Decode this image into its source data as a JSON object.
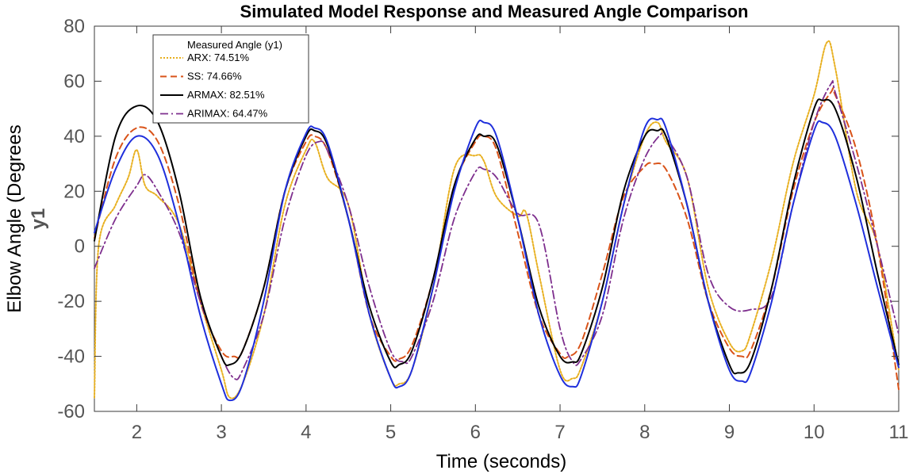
{
  "chart_data": {
    "type": "line",
    "title": "Simulated Model Response and Measured Angle Comparison",
    "xlabel": "Time (seconds)",
    "ylabel": "Elbow Angle (Degrees",
    "ylabel_secondary": "y1",
    "xlim": [
      1.5,
      11
    ],
    "ylim": [
      -60,
      80
    ],
    "xticks": [
      2,
      3,
      4,
      5,
      6,
      7,
      8,
      9,
      10,
      11
    ],
    "yticks": [
      -60,
      -40,
      -20,
      0,
      20,
      40,
      60,
      80
    ],
    "grid": false,
    "legend_position": "top-left",
    "legend_title": "Measured Angle (y1)",
    "series": [
      {
        "name": "Measured Angle (y1)",
        "color": "#1f2fdc",
        "style": "solid",
        "x": [
          1.5,
          1.75,
          2.0,
          2.25,
          2.5,
          2.75,
          3.0,
          3.1,
          3.25,
          3.5,
          3.75,
          4.0,
          4.1,
          4.25,
          4.5,
          4.75,
          5.0,
          5.1,
          5.25,
          5.5,
          5.75,
          6.0,
          6.1,
          6.25,
          6.5,
          6.75,
          7.0,
          7.15,
          7.25,
          7.5,
          7.75,
          8.0,
          8.15,
          8.25,
          8.5,
          8.75,
          9.0,
          9.15,
          9.25,
          9.5,
          9.75,
          10.0,
          10.1,
          10.25,
          10.5,
          10.75,
          11.0
        ],
        "y": [
          5,
          28,
          40,
          33,
          8,
          -25,
          -50,
          -56,
          -50,
          -20,
          20,
          41,
          43,
          38,
          10,
          -25,
          -48,
          -51,
          -45,
          -15,
          20,
          43,
          45,
          40,
          10,
          -25,
          -47,
          -51,
          -47,
          -20,
          15,
          43,
          46,
          43,
          15,
          -20,
          -45,
          -49,
          -46,
          -20,
          15,
          42,
          45,
          40,
          15,
          -15,
          -44
        ]
      },
      {
        "name": "ARX: 74.51%",
        "color": "#e8b020",
        "style": "dotted",
        "x": [
          1.5,
          1.55,
          1.75,
          1.9,
          2.0,
          2.1,
          2.25,
          2.5,
          2.75,
          3.0,
          3.1,
          3.25,
          3.5,
          3.75,
          4.0,
          4.1,
          4.25,
          4.5,
          4.75,
          5.0,
          5.1,
          5.25,
          5.5,
          5.75,
          6.0,
          6.1,
          6.25,
          6.5,
          6.6,
          6.75,
          7.0,
          7.15,
          7.25,
          7.5,
          7.75,
          8.0,
          8.15,
          8.25,
          8.5,
          8.75,
          9.0,
          9.15,
          9.25,
          9.5,
          9.75,
          10.0,
          10.15,
          10.25,
          10.5,
          10.75,
          11.0
        ],
        "y": [
          -55,
          0,
          15,
          25,
          35,
          22,
          18,
          8,
          -20,
          -45,
          -55,
          -50,
          -25,
          15,
          35,
          38,
          25,
          15,
          -25,
          -48,
          -50,
          -45,
          -15,
          28,
          33,
          31,
          18,
          11,
          12,
          -10,
          -45,
          -48,
          -44,
          -20,
          15,
          40,
          45,
          38,
          25,
          -15,
          -35,
          -38,
          -32,
          -5,
          30,
          55,
          74,
          65,
          20,
          0,
          -45
        ]
      },
      {
        "name": "SS: 74.66%",
        "color": "#d95319",
        "style": "dashed",
        "x": [
          1.5,
          1.75,
          2.0,
          2.25,
          2.5,
          2.75,
          3.0,
          3.15,
          3.25,
          3.5,
          3.75,
          4.0,
          4.1,
          4.25,
          4.5,
          4.75,
          5.0,
          5.1,
          5.25,
          5.5,
          5.75,
          6.0,
          6.1,
          6.25,
          6.5,
          6.75,
          7.0,
          7.1,
          7.25,
          7.5,
          7.75,
          8.0,
          8.1,
          8.25,
          8.5,
          8.75,
          9.0,
          9.15,
          9.25,
          9.5,
          9.75,
          10.0,
          10.2,
          10.25,
          10.5,
          10.75,
          11.0
        ],
        "y": [
          3,
          32,
          43,
          38,
          15,
          -20,
          -38,
          -40,
          -38,
          -15,
          20,
          38,
          40,
          35,
          10,
          -25,
          -40,
          -41,
          -36,
          -12,
          22,
          38,
          40,
          35,
          5,
          -25,
          -39,
          -40,
          -35,
          -10,
          18,
          29,
          30,
          28,
          10,
          -20,
          -37,
          -40,
          -38,
          -15,
          20,
          45,
          56,
          55,
          35,
          0,
          -52
        ]
      },
      {
        "name": "ARMAX: 82.51%",
        "color": "#000000",
        "style": "solid",
        "x": [
          1.5,
          1.75,
          2.0,
          2.25,
          2.5,
          2.75,
          3.0,
          3.1,
          3.25,
          3.5,
          3.75,
          4.0,
          4.1,
          4.25,
          4.5,
          4.75,
          5.0,
          5.1,
          5.25,
          5.5,
          5.75,
          6.0,
          6.1,
          6.25,
          6.5,
          6.75,
          7.0,
          7.15,
          7.25,
          7.5,
          7.75,
          8.0,
          8.15,
          8.25,
          8.5,
          8.75,
          9.0,
          9.1,
          9.25,
          9.5,
          9.75,
          10.0,
          10.1,
          10.25,
          10.5,
          10.75,
          11.0
        ],
        "y": [
          2,
          40,
          51,
          45,
          20,
          -18,
          -40,
          -43,
          -38,
          -15,
          20,
          40,
          42,
          37,
          10,
          -22,
          -42,
          -43,
          -38,
          -12,
          22,
          39,
          40,
          37,
          10,
          -22,
          -40,
          -42,
          -39,
          -15,
          20,
          40,
          42,
          40,
          15,
          -20,
          -43,
          -46,
          -42,
          -15,
          22,
          50,
          53,
          50,
          25,
          -10,
          -43
        ]
      },
      {
        "name": "ARIMAX: 64.47%",
        "color": "#7e2f8e",
        "style": "dashdot",
        "x": [
          1.5,
          1.75,
          2.0,
          2.1,
          2.25,
          2.5,
          2.75,
          3.0,
          3.15,
          3.25,
          3.5,
          3.75,
          4.0,
          4.15,
          4.25,
          4.5,
          4.75,
          5.0,
          5.15,
          5.25,
          5.5,
          5.75,
          6.0,
          6.1,
          6.25,
          6.5,
          6.75,
          7.0,
          7.15,
          7.25,
          7.5,
          7.75,
          8.0,
          8.2,
          8.25,
          8.5,
          8.75,
          9.0,
          9.25,
          9.5,
          9.75,
          10.0,
          10.2,
          10.25,
          10.5,
          10.75,
          11.0
        ],
        "y": [
          -8,
          10,
          22,
          26,
          20,
          5,
          -20,
          -40,
          -48,
          -45,
          -25,
          10,
          33,
          38,
          35,
          15,
          -15,
          -38,
          -42,
          -40,
          -20,
          10,
          27,
          28,
          25,
          12,
          8,
          -30,
          -42,
          -41,
          -25,
          10,
          32,
          41,
          40,
          25,
          -10,
          -22,
          -23,
          -18,
          15,
          45,
          59,
          56,
          30,
          0,
          -32
        ]
      }
    ]
  }
}
